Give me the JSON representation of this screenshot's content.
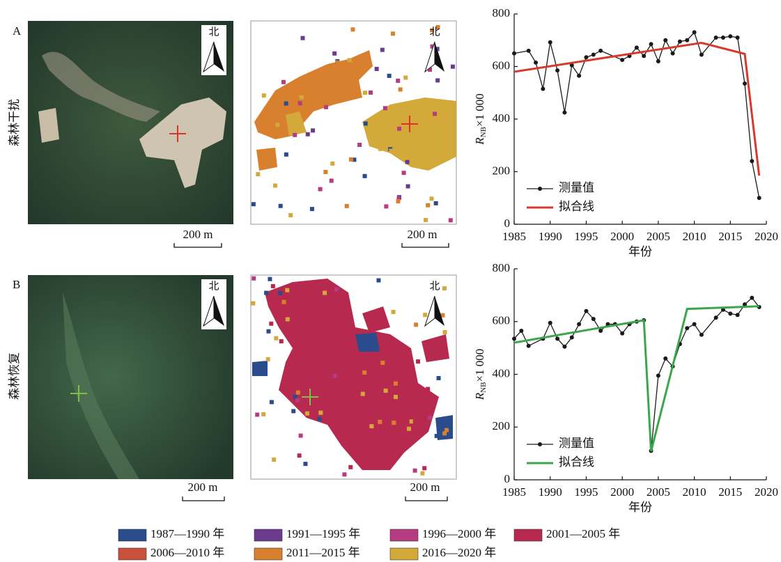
{
  "panels": [
    {
      "label": "A",
      "row_label": "森林干扰",
      "north": [
        "北",
        "北"
      ],
      "scale": [
        "200 m",
        "200 m"
      ]
    },
    {
      "label": "B",
      "row_label": "森林恢复",
      "north": [
        "北",
        "北"
      ],
      "scale": [
        "200 m",
        "200 m"
      ]
    }
  ],
  "chart_data": [
    {
      "type": "line",
      "xlim": [
        1985,
        2020
      ],
      "xticks": [
        1985,
        1990,
        1995,
        2000,
        2005,
        2010,
        2015,
        2020
      ],
      "ylim": [
        0,
        800
      ],
      "yticks": [
        0,
        200,
        400,
        600,
        800
      ],
      "xlabel": "年份",
      "ylabel": {
        "symbol": "R",
        "subscript": "NB",
        "factor": "×1 000"
      },
      "series": [
        {
          "name": "测量值",
          "color": "#1a1a1a",
          "marker": true,
          "x": [
            1985,
            1987,
            1988,
            1989,
            1990,
            1991,
            1992,
            1993,
            1994,
            1995,
            1996,
            1997,
            2000,
            2001,
            2002,
            2003,
            2004,
            2005,
            2006,
            2007,
            2008,
            2009,
            2010,
            2011,
            2013,
            2014,
            2015,
            2016,
            2017,
            2018,
            2019
          ],
          "values": [
            650,
            660,
            615,
            515,
            692,
            585,
            425,
            605,
            565,
            635,
            645,
            660,
            625,
            640,
            672,
            640,
            685,
            620,
            700,
            650,
            695,
            700,
            730,
            645,
            710,
            710,
            715,
            710,
            535,
            240,
            100
          ]
        },
        {
          "name": "拟合线",
          "color": "#d63a2f",
          "marker": false,
          "x": [
            1985,
            2011,
            2017,
            2019
          ],
          "values": [
            580,
            690,
            648,
            185
          ]
        }
      ]
    },
    {
      "type": "line",
      "xlim": [
        1985,
        2020
      ],
      "xticks": [
        1985,
        1990,
        1995,
        2000,
        2005,
        2010,
        2015,
        2020
      ],
      "ylim": [
        0,
        800
      ],
      "yticks": [
        0,
        200,
        400,
        600,
        800
      ],
      "xlabel": "年份",
      "ylabel": {
        "symbol": "R",
        "subscript": "NB",
        "factor": "×1 000"
      },
      "series": [
        {
          "name": "测量值",
          "color": "#1a1a1a",
          "marker": true,
          "x": [
            1985,
            1986,
            1987,
            1989,
            1990,
            1991,
            1992,
            1993,
            1994,
            1995,
            1996,
            1997,
            1998,
            1999,
            2000,
            2001,
            2002,
            2003,
            2004,
            2005,
            2006,
            2007,
            2008,
            2009,
            2010,
            2011,
            2013,
            2014,
            2015,
            2016,
            2017,
            2018,
            2019
          ],
          "values": [
            535,
            565,
            508,
            535,
            595,
            535,
            505,
            540,
            590,
            640,
            610,
            565,
            590,
            590,
            555,
            590,
            600,
            605,
            110,
            395,
            460,
            430,
            515,
            575,
            590,
            550,
            615,
            645,
            630,
            625,
            665,
            690,
            655
          ]
        },
        {
          "name": "拟合线",
          "color": "#3aa64a",
          "marker": false,
          "x": [
            1985,
            2003,
            2004,
            2009,
            2019
          ],
          "values": [
            520,
            605,
            108,
            648,
            658
          ]
        }
      ]
    }
  ],
  "map_legend": [
    {
      "label": "1987—1990 年",
      "color": "#2b4c8c"
    },
    {
      "label": "1991—1995 年",
      "color": "#6b3b8e"
    },
    {
      "label": "1996—2000 年",
      "color": "#b63c82"
    },
    {
      "label": "2001—2005 年",
      "color": "#b8294f"
    },
    {
      "label": "2006—2010 年",
      "color": "#c9503c"
    },
    {
      "label": "2011—2015 年",
      "color": "#d9802e"
    },
    {
      "label": "2016—2020 年",
      "color": "#d3a93a"
    }
  ]
}
